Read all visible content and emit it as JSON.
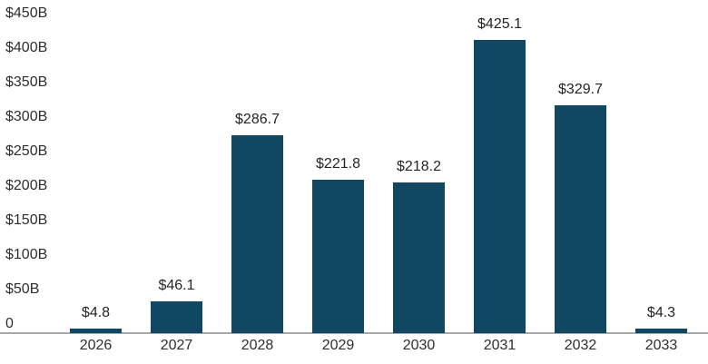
{
  "chart_data": {
    "type": "bar",
    "title": "",
    "xlabel": "",
    "ylabel": "",
    "categories": [
      "2026",
      "2027",
      "2028",
      "2029",
      "2030",
      "2031",
      "2032",
      "2033"
    ],
    "values": [
      4.8,
      46.1,
      286.7,
      221.8,
      218.2,
      425.1,
      329.7,
      4.3
    ],
    "bar_labels": [
      "$4.8",
      "$46.1",
      "$286.7",
      "$221.8",
      "$218.2",
      "$425.1",
      "$329.7",
      "$4.3"
    ],
    "y_ticks": [
      {
        "label": "$450B",
        "value": 450
      },
      {
        "label": "$400B",
        "value": 400
      },
      {
        "label": "$350B",
        "value": 350
      },
      {
        "label": "$300B",
        "value": 300
      },
      {
        "label": "$250B",
        "value": 250
      },
      {
        "label": "$200B",
        "value": 200
      },
      {
        "label": "$150B",
        "value": 150
      },
      {
        "label": "$100B",
        "value": 100
      },
      {
        "label": "$50B",
        "value": 50
      },
      {
        "label": "0",
        "value": 0
      }
    ],
    "ylim": [
      0,
      450
    ],
    "grid": "off",
    "legend": "none",
    "colors": {
      "bar": "#104763",
      "axis_line": "#a8a8a8",
      "text": "#2e2e2e",
      "background": "#ffffff"
    }
  }
}
